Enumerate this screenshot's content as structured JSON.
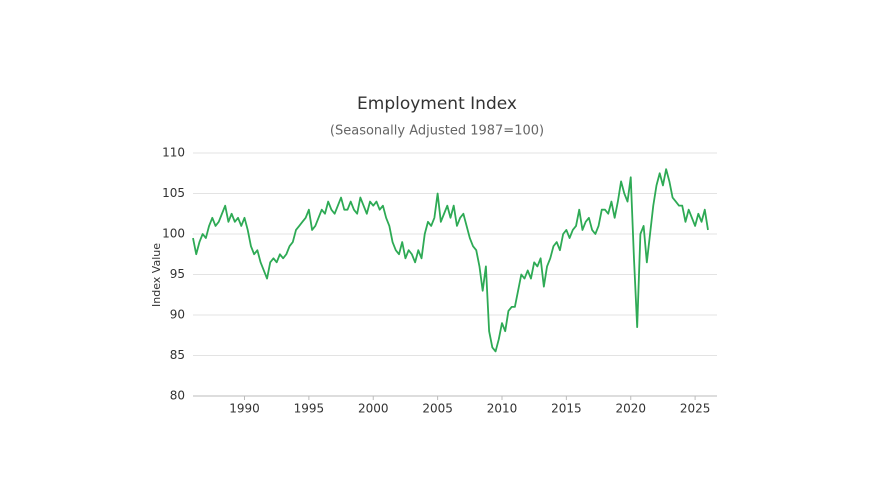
{
  "chart_data": {
    "type": "line",
    "title": "Employment Index",
    "subtitle": "(Seasonally Adjusted 1987=100)",
    "y_label": "Index Value",
    "x": [
      1986,
      1986.25,
      1986.5,
      1986.75,
      1987,
      1987.25,
      1987.5,
      1987.75,
      1988,
      1988.25,
      1988.5,
      1988.75,
      1989,
      1989.25,
      1989.5,
      1989.75,
      1990,
      1990.25,
      1990.5,
      1990.75,
      1991,
      1991.25,
      1991.5,
      1991.75,
      1992,
      1992.25,
      1992.5,
      1992.75,
      1993,
      1993.25,
      1993.5,
      1993.75,
      1994,
      1994.25,
      1994.5,
      1994.75,
      1995,
      1995.25,
      1995.5,
      1995.75,
      1996,
      1996.25,
      1996.5,
      1996.75,
      1997,
      1997.25,
      1997.5,
      1997.75,
      1998,
      1998.25,
      1998.5,
      1998.75,
      1999,
      1999.25,
      1999.5,
      1999.75,
      2000,
      2000.25,
      2000.5,
      2000.75,
      2001,
      2001.25,
      2001.5,
      2001.75,
      2002,
      2002.25,
      2002.5,
      2002.75,
      2003,
      2003.25,
      2003.5,
      2003.75,
      2004,
      2004.25,
      2004.5,
      2004.75,
      2005,
      2005.25,
      2005.5,
      2005.75,
      2006,
      2006.25,
      2006.5,
      2006.75,
      2007,
      2007.25,
      2007.5,
      2007.75,
      2008,
      2008.25,
      2008.5,
      2008.75,
      2009,
      2009.25,
      2009.5,
      2009.75,
      2010,
      2010.25,
      2010.5,
      2010.75,
      2011,
      2011.25,
      2011.5,
      2011.75,
      2012,
      2012.25,
      2012.5,
      2012.75,
      2013,
      2013.25,
      2013.5,
      2013.75,
      2014,
      2014.25,
      2014.5,
      2014.75,
      2015,
      2015.25,
      2015.5,
      2015.75,
      2016,
      2016.25,
      2016.5,
      2016.75,
      2017,
      2017.25,
      2017.5,
      2017.75,
      2018,
      2018.25,
      2018.5,
      2018.75,
      2019,
      2019.25,
      2019.5,
      2019.75,
      2020,
      2020.25,
      2020.5,
      2020.75,
      2021,
      2021.25,
      2021.5,
      2021.75,
      2022,
      2022.25,
      2022.5,
      2022.75,
      2023,
      2023.25,
      2023.5,
      2023.75,
      2024,
      2024.25,
      2024.5,
      2024.75,
      2025,
      2025.25,
      2025.5,
      2025.75,
      2026
    ],
    "series": [
      {
        "name": "Employment Index",
        "color": "#2eaa55",
        "values": [
          99.5,
          97.5,
          99,
          100,
          99.5,
          101,
          102,
          101,
          101.5,
          102.5,
          103.5,
          101.5,
          102.5,
          101.5,
          102,
          101,
          102,
          100.5,
          98.5,
          97.5,
          98,
          96.5,
          95.5,
          94.5,
          96.5,
          97,
          96.5,
          97.5,
          97,
          97.5,
          98.5,
          99,
          100.5,
          101,
          101.5,
          102,
          103,
          100.5,
          101,
          102,
          103,
          102.5,
          104,
          103,
          102.5,
          103.5,
          104.5,
          103,
          103,
          104,
          103,
          102.5,
          104.5,
          103.5,
          102.5,
          104,
          103.5,
          104,
          103,
          103.5,
          102,
          101,
          99,
          98,
          97.5,
          99,
          97,
          98,
          97.5,
          96.5,
          98,
          97,
          100,
          101.5,
          101,
          102,
          105,
          101.5,
          102.5,
          103.5,
          102,
          103.5,
          101,
          102,
          102.5,
          101,
          99.5,
          98.5,
          98,
          96,
          93,
          96,
          88,
          86,
          85.5,
          87,
          89,
          88,
          90.5,
          91,
          91,
          93,
          95,
          94.5,
          95.5,
          94.5,
          96.5,
          96,
          97,
          93.5,
          96,
          97,
          98.5,
          99,
          98,
          100,
          100.5,
          99.5,
          100.5,
          101,
          103,
          100.5,
          101.5,
          102,
          100.5,
          100,
          101,
          103,
          103,
          102.5,
          104,
          102,
          104,
          106.5,
          105,
          104,
          107,
          97,
          88.5,
          100,
          101,
          96.5,
          100,
          103.5,
          106,
          107.5,
          106,
          108,
          106.5,
          104.5,
          104,
          103.5,
          103.5,
          101.5,
          103,
          102,
          101,
          102.5,
          101.5,
          103,
          100.5
        ]
      }
    ],
    "xlim": [
      1986,
      2026.7
    ],
    "ylim": [
      80,
      110
    ],
    "xticks": [
      1990,
      1995,
      2000,
      2005,
      2010,
      2015,
      2020,
      2025
    ],
    "yticks": [
      80,
      85,
      90,
      95,
      100,
      105,
      110
    ],
    "grid": true
  }
}
